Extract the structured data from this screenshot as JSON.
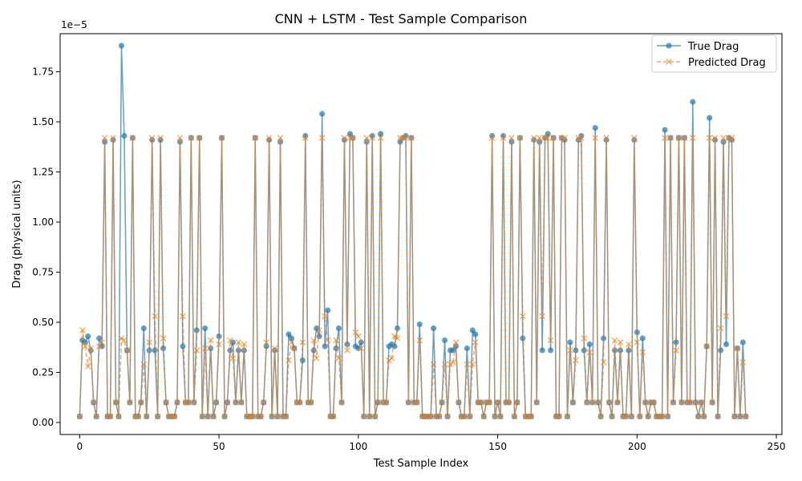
{
  "chart_data": {
    "type": "line",
    "title": "CNN + LSTM - Test Sample Comparison",
    "xlabel": "Test Sample Index",
    "ylabel": "Drag (physical units)",
    "y_offset_label": "1e−5",
    "xlim": [
      -7,
      252
    ],
    "ylim": [
      -0.06,
      1.94
    ],
    "xticks": [
      0,
      50,
      100,
      150,
      200,
      250
    ],
    "xtick_labels": [
      "0",
      "50",
      "100",
      "150",
      "200",
      "250"
    ],
    "yticks": [
      0.0,
      0.25,
      0.5,
      0.75,
      1.0,
      1.25,
      1.5,
      1.75
    ],
    "ytick_labels": [
      "0.00",
      "0.25",
      "0.50",
      "0.75",
      "1.00",
      "1.25",
      "1.50",
      "1.75"
    ],
    "grid": false,
    "legend_position": "top-right",
    "colors": {
      "true": "#1f77b4",
      "predicted": "#ff7f0e"
    },
    "x": [
      0,
      1,
      2,
      3,
      4,
      5,
      6,
      7,
      8,
      9,
      10,
      11,
      12,
      13,
      14,
      15,
      16,
      17,
      18,
      19,
      20,
      21,
      22,
      23,
      24,
      25,
      26,
      27,
      28,
      29,
      30,
      31,
      32,
      33,
      34,
      35,
      36,
      37,
      38,
      39,
      40,
      41,
      42,
      43,
      44,
      45,
      46,
      47,
      48,
      49,
      50,
      51,
      52,
      53,
      54,
      55,
      56,
      57,
      58,
      59,
      60,
      61,
      62,
      63,
      64,
      65,
      66,
      67,
      68,
      69,
      70,
      71,
      72,
      73,
      74,
      75,
      76,
      77,
      78,
      79,
      80,
      81,
      82,
      83,
      84,
      85,
      86,
      87,
      88,
      89,
      90,
      91,
      92,
      93,
      94,
      95,
      96,
      97,
      98,
      99,
      100,
      101,
      102,
      103,
      104,
      105,
      106,
      107,
      108,
      109,
      110,
      111,
      112,
      113,
      114,
      115,
      116,
      117,
      118,
      119,
      120,
      121,
      122,
      123,
      124,
      125,
      126,
      127,
      128,
      129,
      130,
      131,
      132,
      133,
      134,
      135,
      136,
      137,
      138,
      139,
      140,
      141,
      142,
      143,
      144,
      145,
      146,
      147,
      148,
      149,
      150,
      151,
      152,
      153,
      154,
      155,
      156,
      157,
      158,
      159,
      160,
      161,
      162,
      163,
      164,
      165,
      166,
      167,
      168,
      169,
      170,
      171,
      172,
      173,
      174,
      175,
      176,
      177,
      178,
      179,
      180,
      181,
      182,
      183,
      184,
      185,
      186,
      187,
      188,
      189,
      190,
      191,
      192,
      193,
      194,
      195,
      196,
      197,
      198,
      199,
      200,
      201,
      202,
      203,
      204,
      205,
      206,
      207,
      208,
      209,
      210,
      211,
      212,
      213,
      214,
      215,
      216,
      217,
      218,
      219,
      220,
      221,
      222,
      223,
      224,
      225,
      226,
      227,
      228,
      229,
      230,
      231,
      232,
      233,
      234,
      235,
      236,
      237,
      238,
      239
    ],
    "series": [
      {
        "name": "True Drag",
        "marker": "circle",
        "line_style": "solid",
        "values": [
          0.03,
          0.41,
          0.4,
          0.43,
          0.36,
          0.1,
          0.03,
          0.42,
          0.38,
          1.4,
          0.03,
          0.03,
          1.41,
          0.1,
          0.03,
          1.88,
          1.43,
          0.36,
          0.1,
          1.42,
          0.03,
          0.03,
          0.1,
          0.47,
          0.03,
          0.36,
          1.41,
          0.36,
          0.03,
          1.41,
          0.37,
          0.1,
          0.03,
          0.03,
          0.03,
          0.1,
          1.4,
          0.38,
          0.1,
          0.1,
          1.42,
          0.1,
          0.46,
          1.42,
          0.03,
          0.47,
          0.03,
          0.37,
          0.03,
          0.1,
          0.43,
          1.42,
          0.03,
          0.1,
          0.36,
          0.4,
          0.1,
          0.36,
          0.1,
          0.36,
          0.03,
          0.03,
          0.03,
          1.42,
          0.03,
          0.03,
          0.1,
          0.38,
          1.41,
          0.03,
          0.36,
          0.03,
          1.4,
          0.03,
          0.03,
          0.44,
          0.42,
          0.37,
          0.1,
          0.1,
          0.31,
          1.43,
          0.1,
          0.1,
          0.36,
          0.47,
          0.43,
          1.54,
          0.38,
          0.56,
          0.03,
          0.03,
          0.37,
          0.47,
          0.1,
          1.41,
          0.39,
          1.44,
          1.42,
          0.38,
          0.37,
          0.4,
          0.03,
          1.4,
          0.03,
          1.43,
          0.03,
          0.1,
          1.44,
          0.1,
          0.1,
          0.38,
          0.39,
          0.38,
          0.47,
          1.4,
          1.42,
          1.43,
          0.1,
          1.42,
          0.1,
          0.1,
          0.49,
          0.03,
          0.03,
          0.03,
          0.03,
          0.47,
          0.03,
          0.03,
          0.1,
          0.41,
          0.03,
          0.36,
          0.36,
          0.38,
          0.1,
          0.03,
          0.03,
          0.37,
          0.03,
          0.46,
          0.44,
          0.1,
          0.1,
          0.03,
          0.1,
          0.1,
          1.43,
          0.03,
          0.1,
          0.03,
          1.43,
          0.1,
          0.1,
          1.4,
          0.03,
          0.1,
          1.42,
          0.42,
          0.03,
          0.03,
          0.03,
          1.41,
          0.1,
          1.4,
          0.36,
          1.42,
          1.44,
          0.36,
          1.42,
          0.03,
          0.03,
          1.42,
          1.41,
          0.03,
          0.4,
          0.1,
          0.36,
          1.41,
          1.43,
          0.36,
          0.1,
          0.39,
          0.1,
          1.47,
          0.1,
          0.03,
          0.42,
          1.41,
          0.1,
          0.03,
          0.36,
          0.1,
          0.36,
          0.03,
          0.03,
          0.36,
          0.03,
          1.41,
          0.45,
          0.03,
          0.42,
          0.1,
          0.03,
          0.1,
          0.1,
          0.03,
          0.03,
          0.03,
          1.46,
          0.03,
          1.42,
          0.1,
          0.4,
          1.42,
          0.1,
          1.42,
          0.1,
          0.1,
          1.6,
          0.1,
          0.03,
          0.1,
          0.03,
          0.38,
          1.52,
          0.1,
          1.41,
          0.03,
          0.36,
          1.4,
          0.39,
          1.42,
          1.41,
          0.03,
          0.37,
          0.03,
          0.4,
          0.03
        ]
      },
      {
        "name": "Predicted Drag",
        "marker": "x",
        "line_style": "dashed",
        "values": [
          0.03,
          0.46,
          0.38,
          0.28,
          0.37,
          0.1,
          0.03,
          0.38,
          0.4,
          1.42,
          0.03,
          0.03,
          1.42,
          0.1,
          0.03,
          0.42,
          0.41,
          0.36,
          0.1,
          1.42,
          0.03,
          0.03,
          0.1,
          0.29,
          0.03,
          0.4,
          1.42,
          0.53,
          0.03,
          1.42,
          0.42,
          0.1,
          0.03,
          0.03,
          0.03,
          0.1,
          1.42,
          0.53,
          0.1,
          0.1,
          1.42,
          0.1,
          0.36,
          1.42,
          0.03,
          0.37,
          0.03,
          0.41,
          0.03,
          0.1,
          0.39,
          1.42,
          0.03,
          0.1,
          0.41,
          0.32,
          0.1,
          0.4,
          0.1,
          0.39,
          0.03,
          0.03,
          0.03,
          1.42,
          0.03,
          0.03,
          0.1,
          0.4,
          1.42,
          0.03,
          0.37,
          0.03,
          1.42,
          0.03,
          0.03,
          0.31,
          0.4,
          0.37,
          0.1,
          0.1,
          0.4,
          1.42,
          0.1,
          0.1,
          0.41,
          0.32,
          0.46,
          1.42,
          0.53,
          0.41,
          0.03,
          0.03,
          0.41,
          0.32,
          0.1,
          1.42,
          0.36,
          1.42,
          1.42,
          0.45,
          0.43,
          0.37,
          0.03,
          1.42,
          0.03,
          1.42,
          0.03,
          0.1,
          1.42,
          0.1,
          0.1,
          0.31,
          0.32,
          0.43,
          0.42,
          1.42,
          1.42,
          1.42,
          0.1,
          1.42,
          0.1,
          0.1,
          0.41,
          0.03,
          0.03,
          0.03,
          0.03,
          0.29,
          0.03,
          0.03,
          0.1,
          0.29,
          0.03,
          0.29,
          0.3,
          0.4,
          0.1,
          0.03,
          0.03,
          0.29,
          0.03,
          0.29,
          0.4,
          0.1,
          0.1,
          0.03,
          0.1,
          0.1,
          1.42,
          0.03,
          0.1,
          0.03,
          1.42,
          0.1,
          0.1,
          1.42,
          0.03,
          0.1,
          1.42,
          0.53,
          0.03,
          0.03,
          0.03,
          1.42,
          0.1,
          1.42,
          0.53,
          1.42,
          1.42,
          0.41,
          1.42,
          0.03,
          0.03,
          1.42,
          1.42,
          0.03,
          0.36,
          0.1,
          0.31,
          1.42,
          1.42,
          0.42,
          0.1,
          0.35,
          0.1,
          1.42,
          0.1,
          0.03,
          0.3,
          1.42,
          0.1,
          0.03,
          0.41,
          0.1,
          0.4,
          0.03,
          0.03,
          0.39,
          0.03,
          1.42,
          0.4,
          0.03,
          0.35,
          0.1,
          0.03,
          0.1,
          0.1,
          0.03,
          0.03,
          0.03,
          1.42,
          0.03,
          1.42,
          0.1,
          0.36,
          1.42,
          0.1,
          1.42,
          0.1,
          0.1,
          1.42,
          0.1,
          0.03,
          0.1,
          0.03,
          0.38,
          1.42,
          0.1,
          1.42,
          0.03,
          0.47,
          1.42,
          0.53,
          1.42,
          1.42,
          0.03,
          0.37,
          0.03,
          0.3,
          0.03
        ]
      }
    ]
  }
}
